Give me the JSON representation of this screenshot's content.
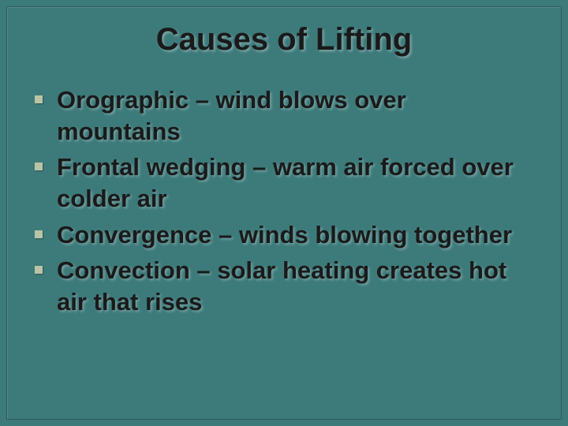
{
  "slide": {
    "background_color": "#3d7a7a",
    "title": {
      "text": "Causes of Lifting",
      "color": "#1a1a1a",
      "fontsize": 40,
      "font_weight": "bold",
      "align": "center"
    },
    "bullets": {
      "marker_color": "#b9c4a5",
      "marker_shape": "square",
      "text_color": "#1a1a1a",
      "fontsize": 31,
      "font_weight": "bold",
      "items": [
        "Orographic – wind blows over mountains",
        "Frontal wedging – warm air forced over colder air",
        "Convergence – winds blowing together",
        "Convection – solar heating creates hot air that rises"
      ]
    }
  }
}
